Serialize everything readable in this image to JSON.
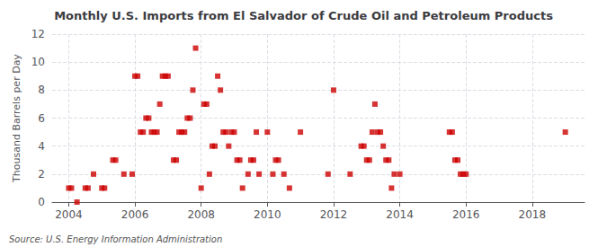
{
  "chart_data": {
    "type": "scatter",
    "title": "Monthly U.S. Imports from El Salvador of Crude Oil and Petroleum Products",
    "ylabel": "Thousand Barrels per Day",
    "annotations": [
      "Source: U.S. Energy Information Administration"
    ],
    "color": "#cc0000",
    "marker": "square",
    "grid": true,
    "xlim": [
      2003.5,
      2019.58
    ],
    "ylim": [
      0,
      12
    ],
    "xticks": [
      2004,
      2006,
      2008,
      2010,
      2012,
      2014,
      2016,
      2018
    ],
    "yticks": [
      0,
      2,
      4,
      6,
      8,
      10,
      12
    ],
    "x": [
      2004.0,
      2004.083,
      2004.25,
      2004.5,
      2004.583,
      2004.75,
      2005.0,
      2005.083,
      2005.333,
      2005.417,
      2005.667,
      2005.917,
      2006.0,
      2006.083,
      2006.167,
      2006.25,
      2006.333,
      2006.417,
      2006.5,
      2006.583,
      2006.667,
      2006.75,
      2006.833,
      2006.917,
      2007.0,
      2007.167,
      2007.25,
      2007.333,
      2007.417,
      2007.5,
      2007.583,
      2007.667,
      2007.75,
      2007.833,
      2008.0,
      2008.083,
      2008.167,
      2008.25,
      2008.333,
      2008.417,
      2008.5,
      2008.583,
      2008.667,
      2008.75,
      2008.833,
      2008.917,
      2009.0,
      2009.083,
      2009.167,
      2009.25,
      2009.417,
      2009.5,
      2009.583,
      2009.667,
      2009.75,
      2010.0,
      2010.167,
      2010.25,
      2010.333,
      2010.5,
      2010.667,
      2011.0,
      2011.833,
      2012.0,
      2012.5,
      2012.917,
      2012.833,
      2013.0,
      2013.083,
      2013.167,
      2013.25,
      2013.333,
      2013.417,
      2013.5,
      2013.583,
      2013.667,
      2013.75,
      2013.833,
      2014.0,
      2015.5,
      2015.583,
      2015.667,
      2015.75,
      2015.833,
      2015.917,
      2016.0,
      2019.0
    ],
    "values": [
      1,
      1,
      0,
      1,
      1,
      2,
      1,
      1,
      3,
      3,
      2,
      2,
      9,
      9,
      5,
      5,
      6,
      6,
      5,
      5,
      5,
      7,
      9,
      9,
      9,
      3,
      3,
      5,
      5,
      5,
      6,
      6,
      8,
      11,
      1,
      7,
      7,
      2,
      4,
      4,
      9,
      8,
      5,
      5,
      4,
      5,
      5,
      3,
      3,
      1,
      2,
      3,
      3,
      5,
      2,
      5,
      2,
      3,
      3,
      2,
      1,
      5,
      2,
      8,
      2,
      4,
      4,
      3,
      3,
      5,
      7,
      5,
      5,
      4,
      3,
      3,
      1,
      2,
      2,
      5,
      5,
      3,
      3,
      2,
      2,
      2,
      5
    ]
  }
}
